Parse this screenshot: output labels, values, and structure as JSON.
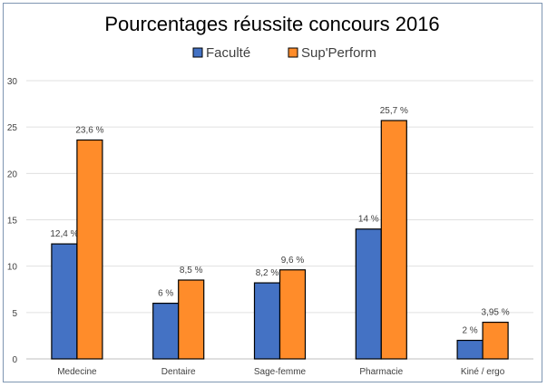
{
  "chart_data": {
    "type": "bar",
    "title": "Pourcentages réussite concours 2016",
    "categories": [
      "Medecine",
      "Dentaire",
      "Sage-femme",
      "Pharmacie",
      "Kiné / ergo"
    ],
    "series": [
      {
        "name": "Faculté",
        "color": "#4472c4",
        "values": [
          12.4,
          6,
          8.2,
          14,
          2
        ],
        "labels": [
          "12,4 %",
          "6 %",
          "8,2 %",
          "14 %",
          "2 %"
        ]
      },
      {
        "name": "Sup'Perform",
        "color": "#ff8c2a",
        "values": [
          23.6,
          8.5,
          9.6,
          25.7,
          3.95
        ],
        "labels": [
          "23,6 %",
          "8,5 %",
          "9,6 %",
          "25,7 %",
          "3,95 %"
        ]
      }
    ],
    "ylim": [
      0,
      30
    ],
    "yticks": [
      0,
      5,
      10,
      15,
      20,
      25,
      30
    ],
    "grid": true,
    "legend": "top-center"
  }
}
